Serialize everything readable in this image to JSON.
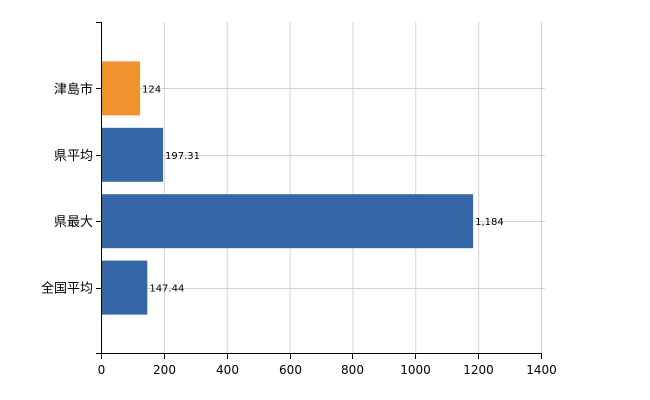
{
  "chart_data": {
    "type": "bar",
    "orientation": "horizontal",
    "categories": [
      "津島市",
      "県平均",
      "県最大",
      "全国平均"
    ],
    "values": [
      124,
      197.31,
      1184,
      147.44
    ],
    "data_labels": [
      "124",
      "197.31",
      "1,184",
      "147.44"
    ],
    "highlight_index": 0,
    "xlim": [
      0,
      1400
    ],
    "x_ticks": [
      0,
      200,
      400,
      600,
      800,
      1000,
      1200,
      1400
    ],
    "grid": true,
    "colors": {
      "highlight": "#F0922E",
      "default": "#3466A8",
      "grid": "#D3D3D3",
      "axis": "#000000"
    }
  }
}
